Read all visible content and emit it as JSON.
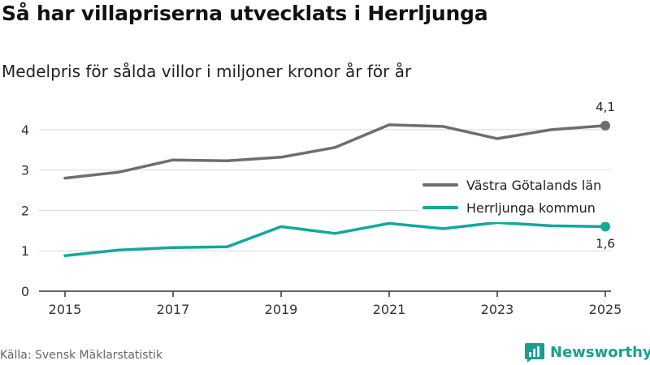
{
  "header": {
    "title": "Så har villapriserna utvecklats i Herrljunga",
    "subtitle": "Medelpris för sålda villor i miljoner kronor år för år"
  },
  "footer": {
    "source": "Källa: Svensk Mäklarstatistik",
    "brand": "Newsworthy"
  },
  "colors": {
    "region_line": "#6e6d72",
    "municipality_line": "#13a89e",
    "grid": "#d9d9d9",
    "axis": "#333333",
    "brand": "#1a9f8f"
  },
  "chart_data": {
    "type": "line",
    "title": "Så har villapriserna utvecklats i Herrljunga",
    "subtitle": "Medelpris för sålda villor i miljoner kronor år för år",
    "xlabel": "",
    "ylabel": "",
    "x": [
      2015,
      2016,
      2017,
      2018,
      2019,
      2020,
      2021,
      2022,
      2023,
      2024,
      2025
    ],
    "x_ticks": [
      2015,
      2017,
      2019,
      2021,
      2023,
      2025
    ],
    "y_ticks": [
      0,
      1,
      2,
      3,
      4
    ],
    "xlim": [
      2015,
      2025
    ],
    "ylim": [
      0,
      4.4
    ],
    "grid": true,
    "legend_position": "right",
    "series": [
      {
        "name": "Västra Götalands län",
        "color": "#6e6d72",
        "values": [
          2.8,
          2.95,
          3.25,
          3.23,
          3.32,
          3.56,
          4.12,
          4.08,
          3.78,
          4.0,
          4.1
        ],
        "end_label": "4,1"
      },
      {
        "name": "Herrljunga kommun",
        "color": "#13a89e",
        "values": [
          0.88,
          1.02,
          1.08,
          1.1,
          1.6,
          1.43,
          1.68,
          1.55,
          1.7,
          1.62,
          1.6
        ],
        "end_label": "1,6"
      }
    ]
  }
}
